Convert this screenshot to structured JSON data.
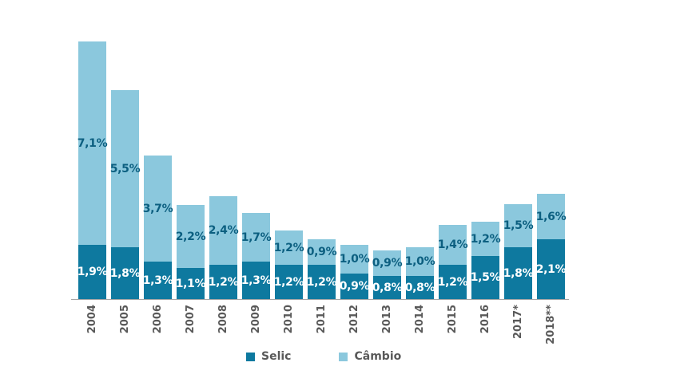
{
  "chart_data": {
    "type": "bar",
    "stacked": true,
    "title": "",
    "unit": "%",
    "legend_position": "bottom",
    "grid": false,
    "categories": [
      "2004",
      "2005",
      "2006",
      "2007",
      "2008",
      "2009",
      "2010",
      "2011",
      "2012",
      "2013",
      "2014",
      "2015",
      "2016",
      "2017*",
      "2018**"
    ],
    "series": [
      {
        "name": "Selic",
        "values": [
          1.9,
          1.8,
          1.3,
          1.1,
          1.2,
          1.3,
          1.2,
          1.2,
          0.9,
          0.8,
          0.8,
          1.2,
          1.5,
          1.8,
          2.1
        ],
        "labels": [
          "1,9%",
          "1,8%",
          "1,3%",
          "1,1%",
          "1,2%",
          "1,3%",
          "1,2%",
          "1,2%",
          "0,9%",
          "0,8%",
          "0,8%",
          "1,2%",
          "1,5%",
          "1,8%",
          "2,1%"
        ],
        "color": "#0e799f",
        "label_color": "#ffffff"
      },
      {
        "name": "Câmbio",
        "values": [
          7.1,
          5.5,
          3.7,
          2.2,
          2.4,
          1.7,
          1.2,
          0.9,
          1.0,
          0.9,
          1.0,
          1.4,
          1.2,
          1.5,
          1.6
        ],
        "labels": [
          "7,1%",
          "5,5%",
          "3,7%",
          "2,2%",
          "2,4%",
          "1,7%",
          "1,2%",
          "0,9%",
          "1,0%",
          "0,9%",
          "1,0%",
          "1,4%",
          "1,2%",
          "1,5%",
          "1,6%"
        ],
        "color": "#8bc8dd",
        "label_color": "#0c5f80"
      }
    ],
    "colors": {
      "axis_line": "#a6a6a6",
      "x_tick_text": "#595959",
      "legend_text": "#595959"
    }
  }
}
